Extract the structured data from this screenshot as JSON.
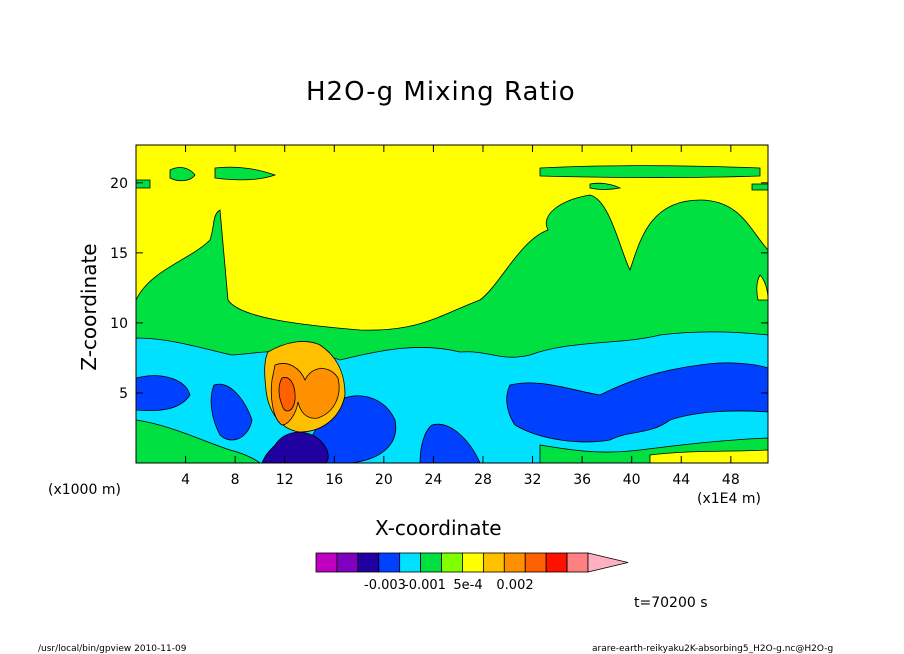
{
  "chart_data": {
    "type": "heatmap",
    "title": "H2O-g Mixing Ratio",
    "xlabel": "X-coordinate",
    "ylabel": "Z-coordinate",
    "x_unit": "(x1E4 m)",
    "y_unit": "(x1000 m)",
    "x_ticks": [
      4,
      8,
      12,
      16,
      20,
      24,
      28,
      32,
      36,
      40,
      44,
      48
    ],
    "y_ticks": [
      5,
      10,
      15,
      20
    ],
    "xlim": [
      0,
      51
    ],
    "ylim": [
      0,
      22.7
    ],
    "colorbar": {
      "colors": [
        "#c000c0",
        "#8000c0",
        "#2000a0",
        "#0040ff",
        "#00e0ff",
        "#00e040",
        "#80ff00",
        "#ffff00",
        "#ffc000",
        "#ff9000",
        "#ff6000",
        "#ff1000",
        "#ff8080",
        "#ffb0c0"
      ],
      "labels": [
        "-0.003",
        "-0.001",
        "5e-4",
        "0.002"
      ]
    },
    "time_label": "t=70200 s",
    "footer_left": "/usr/local/bin/gpview  2010-11-09",
    "footer_right": "arare-earth-reikyaku2K-absorbing5_H2O-g.nc@H2O-g"
  }
}
